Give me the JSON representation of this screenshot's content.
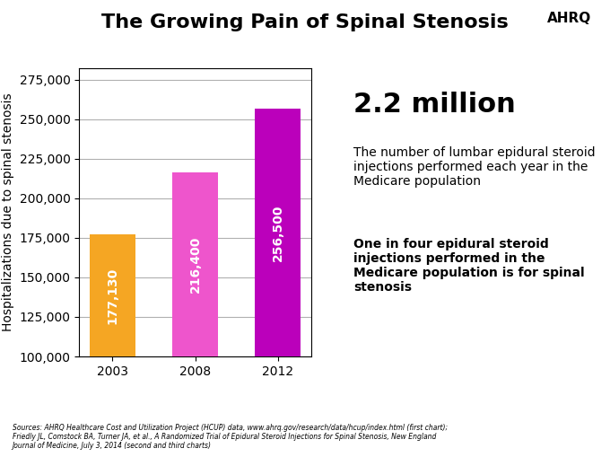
{
  "chart_data": {
    "type": "bar",
    "title": "The Growing Pain of Spinal Stenosis",
    "categories": [
      "2003",
      "2008",
      "2012"
    ],
    "values": [
      177130,
      216400,
      256500
    ],
    "value_labels": [
      "177,130",
      "216,400",
      "256,500"
    ],
    "data_labels": true,
    "colors": [
      "#F5A623",
      "#EE55CC",
      "#BB00BB"
    ],
    "y_label": "Hospitalizations due to spinal stenosis",
    "ylim": [
      100000,
      282000
    ],
    "yticks": [
      {
        "value": 100000,
        "label": "100,000"
      },
      {
        "value": 125000,
        "label": "125,000"
      },
      {
        "value": 150000,
        "label": "150,000"
      },
      {
        "value": 175000,
        "label": "175,000"
      },
      {
        "value": 200000,
        "label": "200,000"
      },
      {
        "value": 225000,
        "label": "225,000"
      },
      {
        "value": 250000,
        "label": "250,000"
      },
      {
        "value": 275000,
        "label": "275,000"
      }
    ],
    "grid": true,
    "annotations": [
      "AHRQ",
      "2.2 million",
      "The number of lumbar epidural steroid injections performed each year in the Medicare population",
      "One in four epidural steroid injections performed in the Medicare population is for spinal stenosis",
      "Sources: AHRQ Healthcare Cost and Utilization Project (HCUP) data, www.ahrq.gov/research/data/hcup/index.html (first chart);\nFriedly JL, Comstock BA, Turner JA, et al., A Randomized Trial of Epidural Steroid Injections for Spinal Stenosis, New England\nJournal of Medicine, July 3, 2014 (second and third charts)"
    ]
  }
}
